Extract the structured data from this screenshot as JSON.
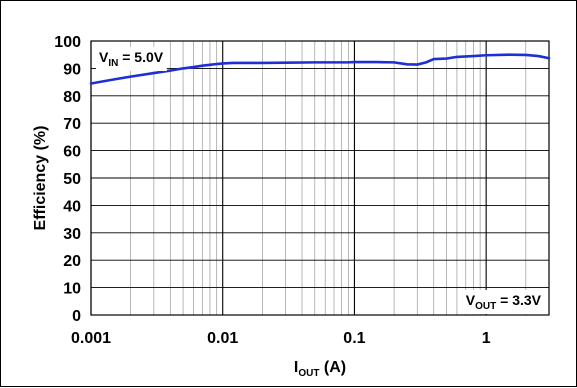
{
  "chart_data": {
    "type": "line",
    "x_scale": "log",
    "xlim": [
      0.001,
      3
    ],
    "ylim": [
      0,
      100
    ],
    "grid": true,
    "x_ticks": [
      "0.001",
      "0.01",
      "0.1",
      "1"
    ],
    "y_ticks": [
      "0",
      "10",
      "20",
      "30",
      "40",
      "50",
      "60",
      "70",
      "80",
      "90",
      "100"
    ],
    "xlabel": {
      "main": "I",
      "sub": "OUT",
      "suffix": " (A)"
    },
    "ylabel": "Efficiency (%)",
    "annotations": {
      "vin": {
        "main": "V",
        "sub": "IN",
        "suffix": " = 5.0V"
      },
      "vout": {
        "main": "V",
        "sub": "OUT",
        "suffix": " = 3.3V"
      }
    },
    "line_color": "#1f2fd6",
    "series": [
      {
        "x": [
          0.001,
          0.0015,
          0.002,
          0.003,
          0.004,
          0.005,
          0.006,
          0.007,
          0.008,
          0.009,
          0.01,
          0.012,
          0.015,
          0.02,
          0.03,
          0.05,
          0.07,
          0.09,
          0.1,
          0.12,
          0.15,
          0.2,
          0.25,
          0.3,
          0.35,
          0.4,
          0.5,
          0.6,
          0.8,
          1.0,
          1.5,
          2.0,
          2.5,
          3.0
        ],
        "y": [
          84.5,
          86.0,
          87.0,
          88.3,
          89.2,
          90.0,
          90.5,
          91.0,
          91.3,
          91.6,
          91.8,
          92.0,
          92.0,
          92.0,
          92.1,
          92.2,
          92.2,
          92.2,
          92.3,
          92.3,
          92.3,
          92.2,
          91.5,
          91.4,
          92.2,
          93.4,
          93.6,
          94.2,
          94.5,
          94.8,
          95.0,
          94.9,
          94.5,
          93.7
        ]
      }
    ]
  }
}
